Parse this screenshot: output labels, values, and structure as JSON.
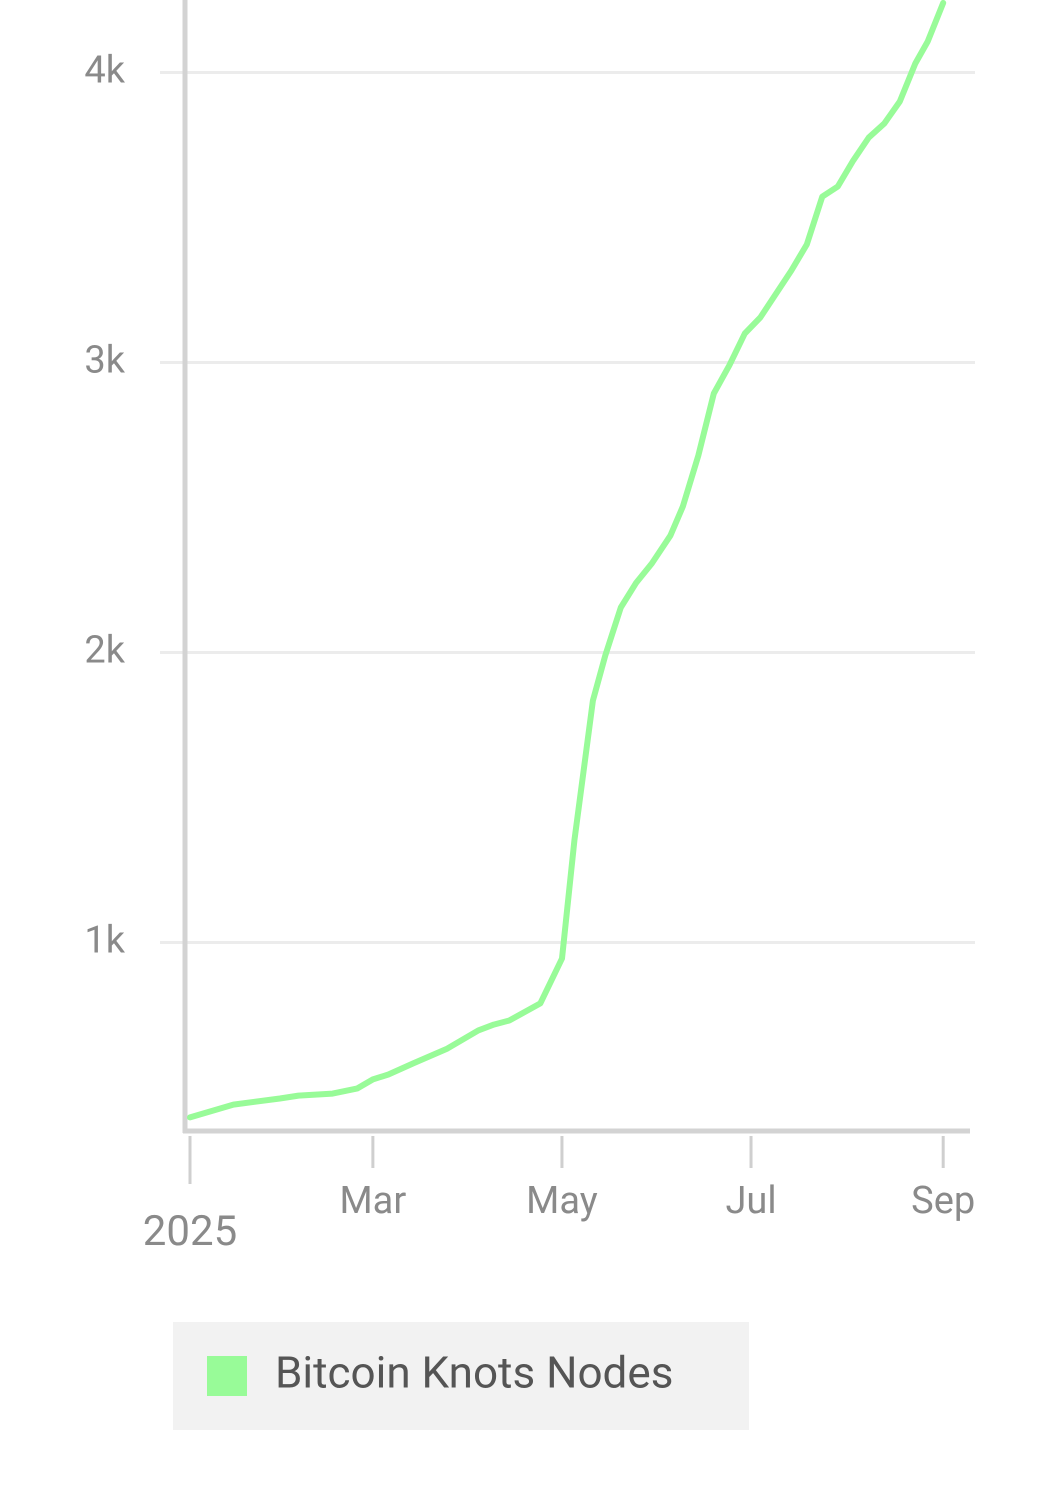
{
  "chart_data": {
    "type": "line",
    "x": [
      "2025-01-01",
      "2025-01-15",
      "2025-01-30",
      "2025-02-05",
      "2025-02-16",
      "2025-02-24",
      "2025-03-01",
      "2025-03-06",
      "2025-03-14",
      "2025-03-25",
      "2025-04-04",
      "2025-04-09",
      "2025-04-14",
      "2025-04-24",
      "2025-05-01",
      "2025-05-05",
      "2025-05-11",
      "2025-05-15",
      "2025-05-20",
      "2025-05-25",
      "2025-05-30",
      "2025-06-05",
      "2025-06-09",
      "2025-06-14",
      "2025-06-19",
      "2025-06-24",
      "2025-06-29",
      "2025-07-04",
      "2025-07-14",
      "2025-07-19",
      "2025-07-24",
      "2025-07-29",
      "2025-08-03",
      "2025-08-08",
      "2025-08-13",
      "2025-08-18",
      "2025-08-23",
      "2025-08-27",
      "2025-09-01"
    ],
    "series": [
      {
        "name": "Bitcoin Knots Nodes",
        "color": "#98fb98",
        "values": [
          397,
          441,
          462,
          472,
          479,
          497,
          528,
          545,
          583,
          634,
          697,
          717,
          731,
          790,
          945,
          1352,
          1834,
          1990,
          2155,
          2241,
          2307,
          2403,
          2503,
          2679,
          2893,
          2990,
          3100,
          3155,
          3317,
          3407,
          3572,
          3607,
          3697,
          3776,
          3824,
          3900,
          4031,
          4107,
          4240
        ]
      }
    ],
    "xlim": [
      "2025-01-01",
      "2025-09-09"
    ],
    "xticks": [
      {
        "value": "2025-01-01",
        "label": "2025"
      },
      {
        "value": "2025-03-01",
        "label": "Mar"
      },
      {
        "value": "2025-05-01",
        "label": "May"
      },
      {
        "value": "2025-07-01",
        "label": "Jul"
      },
      {
        "value": "2025-09-01",
        "label": "Sep"
      }
    ],
    "ylim": [
      350,
      4250
    ],
    "yticks": [
      {
        "value": 1000,
        "label": "1k"
      },
      {
        "value": 2000,
        "label": "2k"
      },
      {
        "value": 3000,
        "label": "3k"
      },
      {
        "value": 4000,
        "label": "4k"
      }
    ],
    "grid": true
  }
}
